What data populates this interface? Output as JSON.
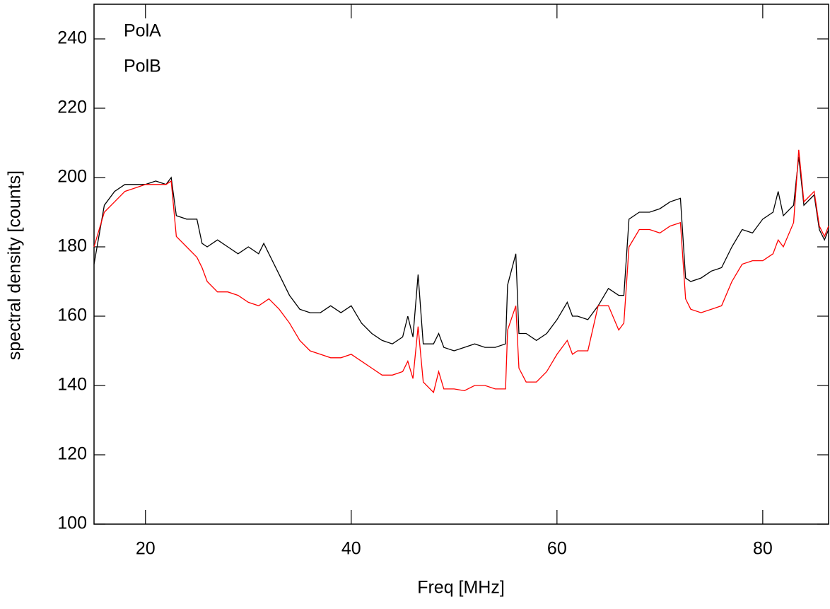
{
  "chart_data": {
    "type": "line",
    "x_label": "Freq [MHz]",
    "y_label": "spectral density [counts]",
    "x": [
      15,
      16,
      17,
      18,
      19,
      20,
      21,
      22,
      22.5,
      23,
      24,
      25,
      25.5,
      26,
      27,
      28,
      29,
      30,
      31,
      31.5,
      32,
      33,
      34,
      35,
      36,
      37,
      38,
      39,
      40,
      41,
      42,
      43,
      44,
      45,
      45.5,
      46,
      46.5,
      47,
      48,
      48.5,
      49,
      50,
      51,
      52,
      53,
      54,
      55,
      55.2,
      56,
      56.3,
      57,
      58,
      59,
      60,
      61,
      61.5,
      62,
      63,
      64,
      65,
      66,
      66.5,
      67,
      68,
      69,
      70,
      71,
      72,
      72.5,
      73,
      74,
      75,
      76,
      77,
      78,
      79,
      80,
      81,
      81.5,
      82,
      83,
      83.5,
      84,
      85,
      85.5,
      86,
      86.4
    ],
    "series": [
      {
        "name": "PolA",
        "color": "#000000",
        "values": [
          175,
          192,
          196,
          198,
          198,
          198,
          199,
          198,
          200,
          189,
          188,
          188,
          181,
          180,
          182,
          180,
          178,
          180,
          178,
          181,
          178,
          172,
          166,
          162,
          161,
          161,
          163,
          161,
          163,
          158,
          155,
          153,
          152,
          154,
          160,
          154,
          172,
          152,
          152,
          155,
          151,
          150,
          151,
          152,
          151,
          151,
          152,
          169,
          178,
          155,
          155,
          153,
          155,
          159,
          164,
          160,
          160,
          159,
          163,
          168,
          166,
          166,
          188,
          190,
          190,
          191,
          193,
          194,
          171,
          170,
          171,
          173,
          174,
          180,
          185,
          184,
          188,
          190,
          196,
          189,
          192,
          206,
          192,
          195,
          185,
          182,
          185
        ]
      },
      {
        "name": "PolB",
        "color": "#ff0000",
        "values": [
          180,
          190,
          193,
          196,
          197,
          198,
          198,
          198,
          199,
          183,
          180,
          177,
          174,
          170,
          167,
          167,
          166,
          164,
          163,
          164,
          165,
          162,
          158,
          153,
          150,
          149,
          148,
          148,
          149,
          147,
          145,
          143,
          143,
          144,
          147,
          142,
          157,
          141,
          138,
          144,
          139,
          139,
          138.5,
          140,
          140,
          139,
          139,
          156,
          163,
          145,
          141,
          141,
          144,
          149,
          153,
          149,
          150,
          150,
          163,
          163,
          156,
          158,
          180,
          185,
          185,
          184,
          186,
          187,
          165,
          162,
          161,
          162,
          163,
          170,
          175,
          176,
          176,
          178,
          182,
          180,
          187,
          208,
          193,
          196,
          186,
          183,
          186
        ]
      }
    ],
    "xlim": [
      15,
      86.4
    ],
    "ylim": [
      100,
      250
    ],
    "xticks": [
      20,
      40,
      60,
      80
    ],
    "yticks": [
      100,
      120,
      140,
      160,
      180,
      200,
      220,
      240
    ],
    "legend": "upper left"
  }
}
